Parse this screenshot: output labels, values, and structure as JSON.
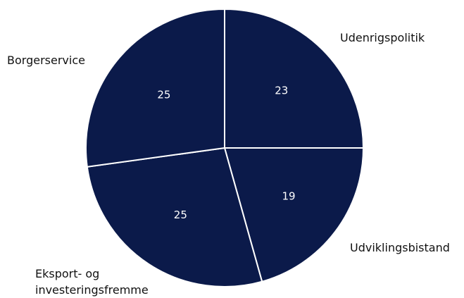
{
  "chart_data": {
    "type": "pie",
    "categories": [
      "Udenrigspolitik",
      "Udviklingsbistand",
      "Eksport- og investeringsfremme",
      "Borgerservice"
    ],
    "values": [
      23,
      19,
      25,
      25
    ],
    "color": "#0b1a4a"
  }
}
